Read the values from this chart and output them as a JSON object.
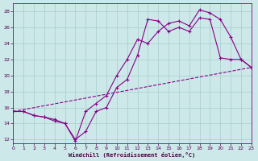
{
  "xlabel": "Windchill (Refroidissement éolien,°C)",
  "bg_color": "#cce8e8",
  "grid_color": "#a8cccc",
  "line_color": "#880088",
  "xmin": 0,
  "xmax": 23,
  "ymin": 11.5,
  "ymax": 29,
  "yticks": [
    12,
    14,
    16,
    18,
    20,
    22,
    24,
    26,
    28
  ],
  "xticks": [
    0,
    1,
    2,
    3,
    4,
    5,
    6,
    7,
    8,
    9,
    10,
    11,
    12,
    13,
    14,
    15,
    16,
    17,
    18,
    19,
    20,
    21,
    22,
    23
  ],
  "line1_x": [
    0,
    1,
    2,
    3,
    4,
    5,
    6,
    7,
    8,
    9,
    10,
    11,
    12,
    13,
    14,
    15,
    16,
    17,
    18,
    19,
    20,
    21,
    22,
    23
  ],
  "line1_y": [
    15.5,
    15.5,
    15.0,
    14.8,
    14.5,
    14.0,
    12.0,
    13.0,
    15.5,
    16.0,
    18.5,
    19.5,
    22.5,
    27.0,
    26.8,
    25.5,
    26.0,
    25.5,
    27.2,
    27.0,
    22.2,
    22.0,
    22.0,
    21.0
  ],
  "line2_x": [
    0,
    1,
    2,
    3,
    4,
    5,
    6,
    7,
    8,
    9,
    10,
    11,
    12,
    13,
    14,
    15,
    16,
    17,
    18,
    19,
    20,
    21,
    22,
    23
  ],
  "line2_y": [
    15.5,
    15.5,
    15.0,
    14.8,
    14.3,
    14.0,
    11.8,
    15.5,
    16.5,
    17.5,
    20.0,
    22.0,
    24.5,
    24.0,
    25.5,
    26.5,
    26.8,
    26.2,
    28.2,
    27.8,
    27.0,
    24.8,
    22.0,
    21.0
  ],
  "line3_x": [
    0,
    23
  ],
  "line3_y": [
    15.5,
    21.0
  ]
}
